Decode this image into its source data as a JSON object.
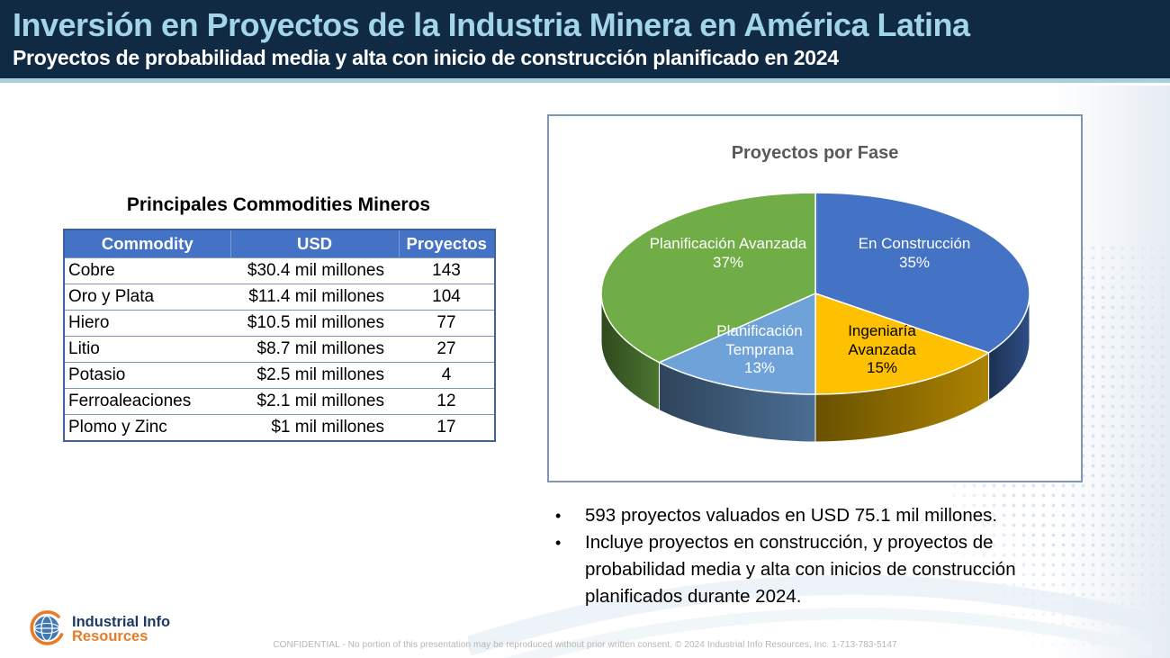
{
  "slide": {
    "title": "Inversión en Proyectos de la Industria Minera en América Latina",
    "subtitle": "Proyectos de probabilidad media y alta con inicio de construcción planificado en 2024"
  },
  "table": {
    "title": "Principales Commodities Mineros",
    "columns": [
      "Commodity",
      "USD",
      "Proyectos"
    ],
    "rows": [
      [
        "Cobre",
        "$30.4 mil millones",
        "143"
      ],
      [
        "Oro y Plata",
        "$11.4 mil millones",
        "104"
      ],
      [
        "Hiero",
        "$10.5 mil millones",
        "77"
      ],
      [
        "Litio",
        "$8.7 mil millones",
        "27"
      ],
      [
        "Potasio",
        "$2.5 mil millones",
        "4"
      ],
      [
        "Ferroaleaciones",
        "$2.1 mil millones",
        "12"
      ],
      [
        "Plomo y Zinc",
        "$1 mil millones",
        "17"
      ]
    ]
  },
  "chart_data": {
    "type": "pie",
    "style": "3d",
    "title": "Proyectos por Fase",
    "start_angle_deg": 0,
    "clockwise": true,
    "legend": "none",
    "series": [
      {
        "label": "En Construcción",
        "value": 35,
        "pct_label": "35%",
        "color": "#4472c4",
        "label_color": "#ffffff"
      },
      {
        "label": "Ingeniaría Avanzada",
        "value": 15,
        "pct_label": "15%",
        "color": "#fdc101",
        "label_color": "#000000"
      },
      {
        "label": "Planificación Temprana",
        "value": 13,
        "pct_label": "13%",
        "color": "#6ea2d9",
        "label_color": "#ffffff"
      },
      {
        "label": "Planificación Avanzada",
        "value": 37,
        "pct_label": "37%",
        "color": "#70ad47",
        "label_color": "#ffffff"
      }
    ]
  },
  "bullets": [
    "593 proyectos valuados en USD 75.1 mil millones.",
    "Incluye proyectos en construcción, y proyectos de probabilidad media y alta con inicios de construcción planificados durante 2024."
  ],
  "footer": {
    "logo_line1": "Industrial Info",
    "logo_line2": "Resources",
    "confidential": "CONFIDENTIAL - No portion of this presentation may be reproduced without prior written consent. © 2024 Industrial Info Resources, Inc. 1-713-783-5147"
  },
  "colors": {
    "header_bg": "#102a43",
    "header_title": "#a3d5e8",
    "header_strip": "#a9cedd",
    "table_header_bg": "#4472c4",
    "table_border": "#41619c",
    "chart_border": "#8096b2",
    "chart_title": "#595959"
  }
}
